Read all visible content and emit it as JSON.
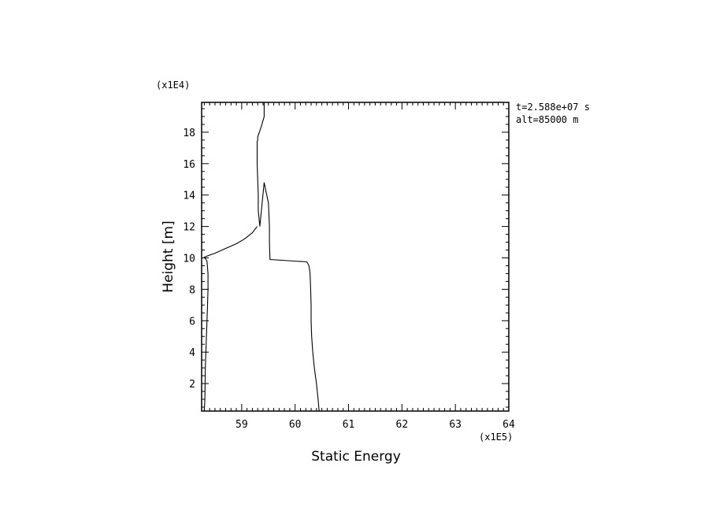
{
  "chart_data": {
    "type": "line",
    "xlabel": "Static Energy",
    "ylabel": "Height [m]",
    "x_scale_label": "(x1E5)",
    "y_scale_label": "(x1E4)",
    "xlim": [
      58.25,
      64
    ],
    "ylim": [
      0.25,
      19.9
    ],
    "x_ticks": [
      59,
      60,
      61,
      62,
      63,
      64
    ],
    "y_ticks": [
      2,
      4,
      6,
      8,
      10,
      12,
      14,
      16,
      18
    ],
    "annotations": [
      "t=2.588e+07 s",
      "alt=85000 m"
    ],
    "grid": false,
    "series": [
      {
        "x": [
          60.45,
          60.43,
          60.4,
          60.36,
          60.33,
          60.31,
          60.3,
          60.3,
          60.29,
          60.28,
          60.26,
          60.22,
          59.98,
          59.53,
          59.52,
          59.52,
          59.5,
          59.47,
          59.45,
          59.42,
          59.34,
          59.31,
          59.31,
          59.3,
          59.29,
          59.29,
          59.29,
          59.3,
          59.3,
          59.31,
          59.33,
          59.38,
          59.42,
          59.42,
          59.42,
          59.42
        ],
        "y": [
          0.25,
          1.0,
          2.0,
          3.0,
          4.0,
          5.0,
          6.0,
          7.0,
          8.0,
          9.0,
          9.5,
          9.75,
          9.8,
          9.9,
          11.0,
          12.0,
          13.5,
          14.0,
          14.3,
          14.8,
          12.0,
          13.0,
          14.0,
          15.0,
          16.0,
          17.0,
          17.4,
          17.5,
          17.7,
          17.8,
          18.0,
          18.5,
          19.0,
          19.5,
          19.7,
          19.9
        ]
      },
      {
        "x": [
          59.29,
          59.2,
          59.05,
          58.9,
          58.7,
          58.5,
          58.38,
          58.3,
          58.35,
          58.37,
          58.37,
          58.36,
          58.35,
          58.34,
          58.33,
          58.32,
          58.31,
          58.3
        ],
        "y": [
          12.0,
          11.6,
          11.2,
          10.9,
          10.6,
          10.3,
          10.15,
          10.05,
          9.8,
          9.0,
          8.0,
          7.0,
          6.0,
          5.0,
          4.0,
          3.0,
          1.0,
          0.25
        ]
      }
    ]
  }
}
